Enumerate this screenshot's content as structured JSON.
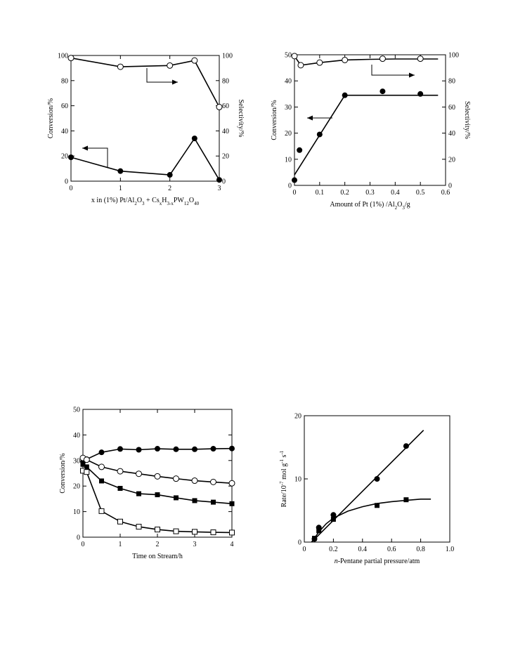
{
  "chart_data": [
    {
      "id": "c1",
      "type": "line",
      "xlabel_parts": [
        {
          "t": "x in (1%) Pt/Al"
        },
        {
          "t": "2",
          "sub": true
        },
        {
          "t": "O"
        },
        {
          "t": "3",
          "sub": true
        },
        {
          "t": " + Cs"
        },
        {
          "t": "x",
          "sub": true
        },
        {
          "t": "H"
        },
        {
          "t": "3-x",
          "sub": true
        },
        {
          "t": "PW"
        },
        {
          "t": "12",
          "sub": true
        },
        {
          "t": "O"
        },
        {
          "t": "40",
          "sub": true
        }
      ],
      "ylabel": "Conversion/%",
      "y2label": "Selectivity/%",
      "xlim": [
        0,
        3
      ],
      "ylim": [
        0,
        100
      ],
      "y2lim": [
        0,
        100
      ],
      "xticks": [
        0,
        1,
        2,
        3
      ],
      "yticks": [
        0,
        20,
        40,
        60,
        80,
        100
      ],
      "y2ticks": [
        0,
        20,
        40,
        60,
        80,
        100
      ],
      "grid": false,
      "series": [
        {
          "marker": "open-circle",
          "axis": "right",
          "line": "connect",
          "x": [
            0,
            1,
            2,
            2.5,
            3
          ],
          "y": [
            98,
            91,
            92,
            96,
            59
          ]
        },
        {
          "marker": "filled-circle",
          "axis": "left",
          "line": "connect",
          "x": [
            0,
            1,
            2,
            2.5,
            3
          ],
          "y": [
            19,
            8,
            5,
            34,
            1
          ]
        }
      ]
    },
    {
      "id": "c2",
      "type": "line",
      "xlabel_parts": [
        {
          "t": "Amount of Pt (1%) /Al"
        },
        {
          "t": "2",
          "sub": true
        },
        {
          "t": "O"
        },
        {
          "t": "3",
          "sub": true
        },
        {
          "t": "/g"
        }
      ],
      "ylabel": "Conversion/%",
      "y2label": "Selectivity/%",
      "xlim": [
        0,
        0.6
      ],
      "ylim": [
        0,
        50
      ],
      "y2lim": [
        0,
        100
      ],
      "xticks": [
        0,
        0.1,
        0.2,
        0.3,
        0.4,
        0.5,
        0.6
      ],
      "yticks": [
        0,
        10,
        20,
        30,
        40,
        50
      ],
      "y2ticks": [
        0,
        20,
        40,
        60,
        80,
        100
      ],
      "grid": false,
      "series": [
        {
          "marker": "open-circle",
          "axis": "right",
          "x": [
            0,
            0.025,
            0.1,
            0.2,
            0.35,
            0.5
          ],
          "y": [
            99,
            92,
            94,
            96,
            97,
            97
          ],
          "curve": {
            "x": [
              0,
              0.025,
              0.1,
              0.2,
              0.3,
              0.4,
              0.5,
              0.57
            ],
            "y": [
              99,
              92,
              94,
              96,
              96.5,
              96.8,
              96.8,
              96.8
            ]
          }
        },
        {
          "marker": "filled-circle",
          "axis": "left",
          "x": [
            0,
            0.02,
            0.1,
            0.2,
            0.35,
            0.5
          ],
          "y": [
            2,
            13.5,
            19.5,
            34.5,
            36,
            35
          ],
          "curve": {
            "x": [
              0,
              0.2,
              0.57
            ],
            "y": [
              4,
              34.5,
              34.5
            ]
          }
        }
      ]
    },
    {
      "id": "c3",
      "type": "line",
      "xlabel": "Time on Stream/h",
      "ylabel": "Conversion/%",
      "xlim": [
        0,
        4
      ],
      "ylim": [
        0,
        50
      ],
      "xticks": [
        0,
        1,
        2,
        3,
        4
      ],
      "yticks": [
        0,
        10,
        20,
        30,
        40,
        50
      ],
      "grid": false,
      "series": [
        {
          "marker": "filled-circle",
          "line": "connect",
          "x": [
            0,
            0.1,
            0.5,
            1,
            1.5,
            2,
            2.5,
            3,
            3.5,
            4
          ],
          "y": [
            29.5,
            30.5,
            33.2,
            34.5,
            34.2,
            34.6,
            34.4,
            34.4,
            34.6,
            34.7
          ]
        },
        {
          "marker": "open-circle",
          "line": "connect",
          "x": [
            0,
            0.1,
            0.5,
            1,
            1.5,
            2,
            2.5,
            3,
            3.5,
            4
          ],
          "y": [
            31,
            30.3,
            27.5,
            25.8,
            24.8,
            23.8,
            22.9,
            22.1,
            21.6,
            21.1
          ]
        },
        {
          "marker": "filled-square",
          "line": "connect",
          "x": [
            0,
            0.1,
            0.5,
            1,
            1.5,
            2,
            2.5,
            3,
            3.5,
            4
          ],
          "y": [
            28.5,
            27.5,
            22,
            19.1,
            17,
            16.6,
            15.4,
            14.3,
            13.7,
            13.1
          ]
        },
        {
          "marker": "open-square",
          "line": "connect",
          "x": [
            0,
            0.1,
            0.5,
            1,
            1.5,
            2,
            2.5,
            3,
            3.5,
            4
          ],
          "y": [
            26,
            25.5,
            10.2,
            6.1,
            4.1,
            3,
            2.3,
            2.1,
            1.9,
            1.8
          ]
        }
      ]
    },
    {
      "id": "c4",
      "type": "scatter",
      "xlabel_parts": [
        {
          "t": "n",
          "it": true
        },
        {
          "t": "-Pentane partial pressure/atm"
        }
      ],
      "ylabel_parts": [
        {
          "t": "Rate/10"
        },
        {
          "t": "-7",
          "sup": true
        },
        {
          "t": " mol g"
        },
        {
          "t": "-1",
          "sup": true
        },
        {
          "t": " s"
        },
        {
          "t": "-1",
          "sup": true
        }
      ],
      "xlim": [
        0,
        1.0
      ],
      "ylim": [
        0,
        20
      ],
      "xticks": [
        0,
        0.2,
        0.4,
        0.6,
        0.8,
        1.0
      ],
      "xticklabels": [
        "0",
        "0.2",
        "0.4",
        "0.6",
        "0.8",
        "1.0"
      ],
      "yticks": [
        0,
        10,
        20
      ],
      "grid": false,
      "series": [
        {
          "marker": "filled-circle",
          "x": [
            0.07,
            0.1,
            0.2,
            0.5,
            0.7
          ],
          "y": [
            0.5,
            2.3,
            4.3,
            10,
            15.2
          ],
          "curve": {
            "x": [
              0.05,
              0.82
            ],
            "y": [
              0,
              17.7
            ]
          }
        },
        {
          "marker": "filled-square",
          "x": [
            0.07,
            0.1,
            0.2,
            0.5,
            0.7
          ],
          "y": [
            0.6,
            1.8,
            3.6,
            5.8,
            6.7
          ],
          "curve": {
            "x": [
              0.05,
              0.1,
              0.15,
              0.2,
              0.3,
              0.4,
              0.5,
              0.6,
              0.7,
              0.8,
              0.87
            ],
            "y": [
              0,
              1.6,
              2.9,
              3.8,
              4.9,
              5.6,
              6.1,
              6.4,
              6.6,
              6.8,
              6.8
            ]
          }
        }
      ]
    }
  ]
}
